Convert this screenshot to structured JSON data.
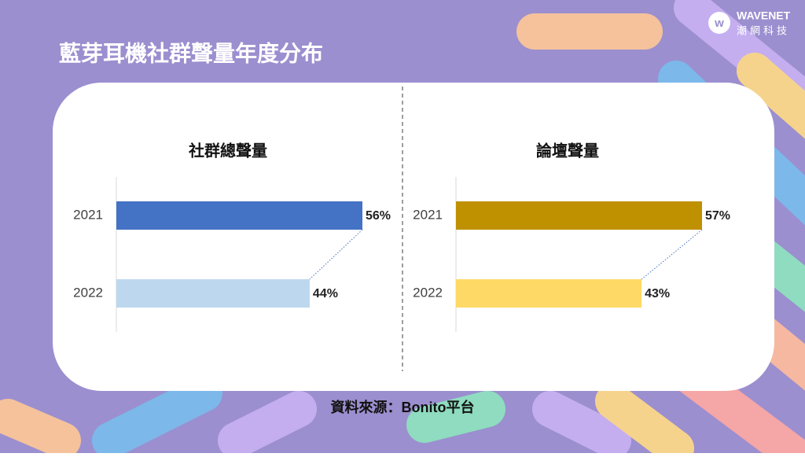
{
  "title": "藍芽耳機社群聲量年度分布",
  "logo": {
    "name": "WAVENET",
    "subtitle": "潮網科技"
  },
  "source": "資料來源：Bonito平台",
  "chart_data": [
    {
      "type": "bar",
      "orientation": "horizontal",
      "title": "社群總聲量",
      "categories": [
        "2021",
        "2022"
      ],
      "values": [
        56,
        44
      ],
      "value_labels": [
        "56%",
        "44%"
      ],
      "colors": [
        "#4472c4",
        "#bdd7ee"
      ]
    },
    {
      "type": "bar",
      "orientation": "horizontal",
      "title": "論壇聲量",
      "categories": [
        "2021",
        "2022"
      ],
      "values": [
        57,
        43
      ],
      "value_labels": [
        "57%",
        "43%"
      ],
      "colors": [
        "#bf9000",
        "#ffd966"
      ]
    }
  ]
}
